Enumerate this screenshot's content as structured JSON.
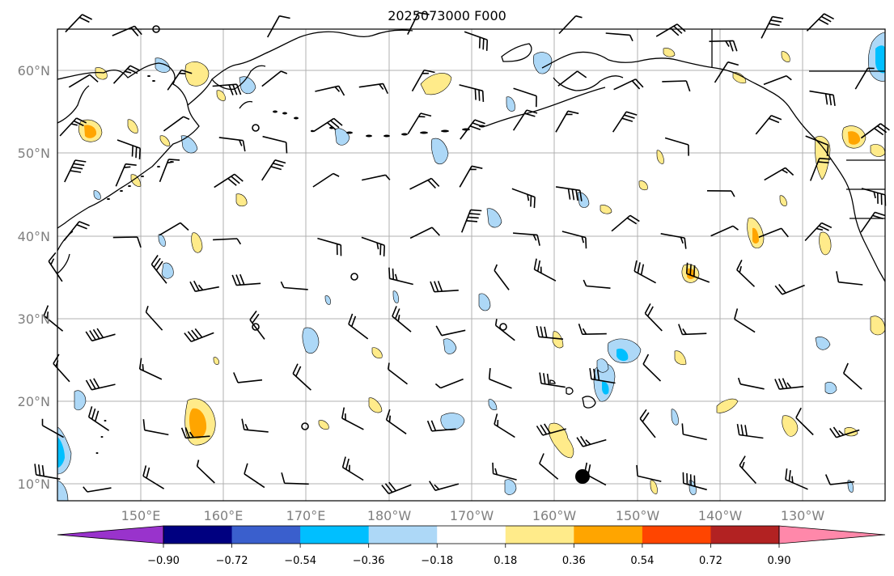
{
  "title": "2025073000 F000",
  "lat_labels": [
    "60°N",
    "50°N",
    "40°N",
    "30°N",
    "20°N",
    "10°N"
  ],
  "lon_labels": [
    "150°E",
    "160°E",
    "170°E",
    "180°W",
    "170°W",
    "160°W",
    "150°W",
    "140°W",
    "130°W"
  ],
  "colorbar": {
    "colors": [
      "#9933cc",
      "#000080",
      "#3a5fcd",
      "#00bfff",
      "#add8f7",
      "#ffffff",
      "#ffeb8a",
      "#ffa500",
      "#ff4500",
      "#b22222",
      "#ff88aa"
    ],
    "tick_labels": [
      "−0.90",
      "−0.72",
      "−0.54",
      "−0.36",
      "−0.18",
      "0.18",
      "0.36",
      "0.54",
      "0.72",
      "0.90"
    ]
  },
  "map_colors": {
    "coast": "#000000",
    "grid": "#b0b0b0"
  }
}
